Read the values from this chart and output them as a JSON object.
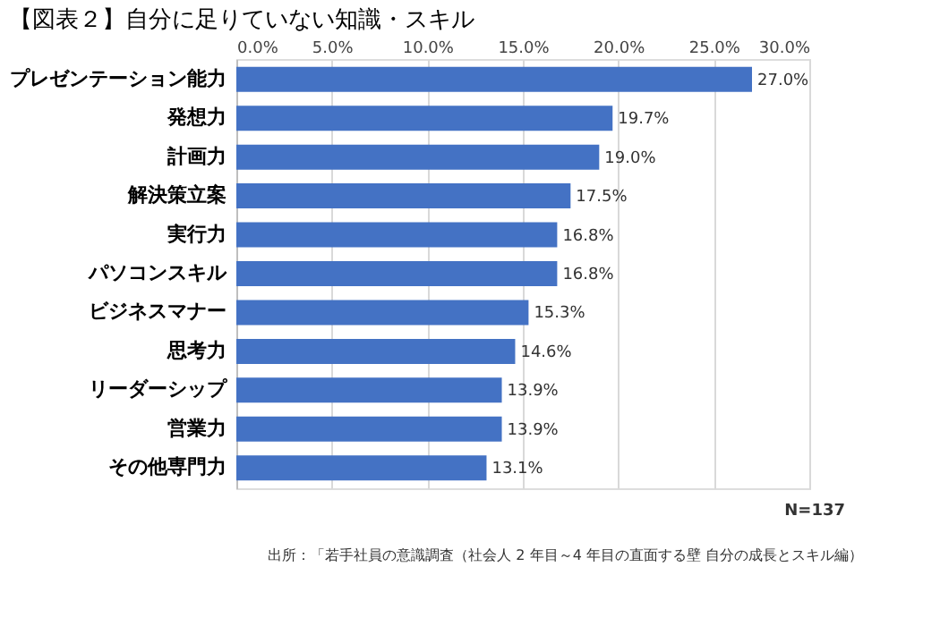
{
  "chart_data": {
    "type": "bar",
    "orientation": "horizontal",
    "title": "【図表２】自分に足りていない知識・スキル",
    "categories": [
      "プレゼンテーション能力",
      "発想力",
      "計画力",
      "解決策立案",
      "実行力",
      "パソコンスキル",
      "ビジネスマナー",
      "思考力",
      "リーダーシップ",
      "営業力",
      "その他専門力"
    ],
    "values": [
      27.0,
      19.7,
      19.0,
      17.5,
      16.8,
      16.8,
      15.3,
      14.6,
      13.9,
      13.9,
      13.1
    ],
    "value_labels": [
      "27.0%",
      "19.7%",
      "19.0%",
      "17.5%",
      "16.8%",
      "16.8%",
      "15.3%",
      "14.6%",
      "13.9%",
      "13.9%",
      "13.1%"
    ],
    "color": "#4472c4",
    "xlim": [
      0,
      30
    ],
    "xticks": [
      {
        "value": 0,
        "label": "0.0%"
      },
      {
        "value": 5,
        "label": "5.0%"
      },
      {
        "value": 10,
        "label": "10.0%"
      },
      {
        "value": 15,
        "label": "15.0%"
      },
      {
        "value": 20,
        "label": "20.0%"
      },
      {
        "value": 25,
        "label": "25.0%"
      },
      {
        "value": 30,
        "label": "30.0%"
      }
    ],
    "grid": "x",
    "annotations": [
      "N=137",
      "出所：「若手社員の意識調査（社会人 2 年目～4 年目の直面する壁 自分の成長とスキル編）"
    ]
  }
}
